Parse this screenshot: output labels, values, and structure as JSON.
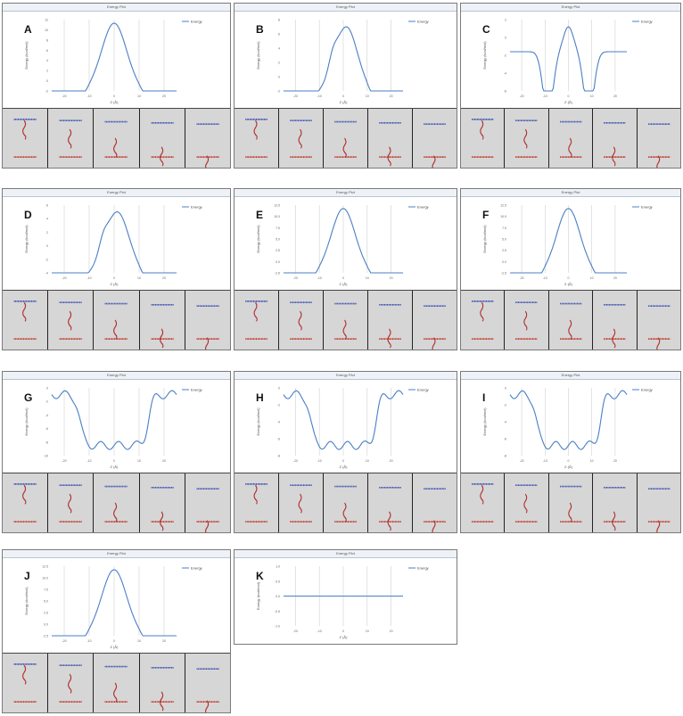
{
  "figure": {
    "panel_title": "Energy Plot",
    "legend_label": "Energy",
    "x_axis_label": "Z (Å)",
    "y_axis_label": "Energy (kcal/mol)",
    "panels": [
      {
        "letter": "A",
        "ticks_y": [
          "12",
          "10",
          "8",
          "6",
          "4",
          "2",
          "0",
          "-2"
        ],
        "ticks_x": [
          "-20",
          "-10",
          "0",
          "10",
          "20"
        ],
        "shape": "peak",
        "frames": 5
      },
      {
        "letter": "B",
        "ticks_y": [
          "8",
          "6",
          "4",
          "2",
          "0",
          "-2"
        ],
        "ticks_x": [
          "-20",
          "-10",
          "0",
          "10",
          "20"
        ],
        "shape": "peak_shoulder",
        "frames": 5
      },
      {
        "letter": "C",
        "ticks_y": [
          "2",
          "0",
          "-2",
          "-4",
          "-6"
        ],
        "ticks_x": [
          "-20",
          "-10",
          "0",
          "10",
          "20"
        ],
        "shape": "double_well",
        "frames": 5
      },
      {
        "letter": "D",
        "ticks_y": [
          "6",
          "4",
          "2",
          "0",
          "-2",
          "-4"
        ],
        "ticks_x": [
          "-20",
          "-10",
          "0",
          "10",
          "20"
        ],
        "shape": "peak_shoulder",
        "frames": 5
      },
      {
        "letter": "E",
        "ticks_y": [
          "12.5",
          "10.0",
          "7.5",
          "5.0",
          "2.5",
          "0.0",
          "-2.5"
        ],
        "ticks_x": [
          "-20",
          "-10",
          "0",
          "10",
          "20"
        ],
        "shape": "peak",
        "frames": 5
      },
      {
        "letter": "F",
        "ticks_y": [
          "12.5",
          "10.0",
          "7.5",
          "5.0",
          "2.5",
          "0.0",
          "-2.5"
        ],
        "ticks_x": [
          "-20",
          "-10",
          "0",
          "10",
          "20"
        ],
        "shape": "peak",
        "frames": 5
      },
      {
        "letter": "G",
        "ticks_y": [
          "0",
          "-2",
          "-4",
          "-6",
          "-8",
          "-10"
        ],
        "ticks_x": [
          "-20",
          "-10",
          "0",
          "10",
          "20"
        ],
        "shape": "trough",
        "frames": 5
      },
      {
        "letter": "H",
        "ticks_y": [
          "0",
          "-2",
          "-4",
          "-6",
          "-8"
        ],
        "ticks_x": [
          "-20",
          "-10",
          "0",
          "10",
          "20"
        ],
        "shape": "trough",
        "frames": 5
      },
      {
        "letter": "I",
        "ticks_y": [
          "0",
          "-2",
          "-4",
          "-6",
          "-8"
        ],
        "ticks_x": [
          "-20",
          "-10",
          "0",
          "10",
          "20"
        ],
        "shape": "trough",
        "frames": 5
      },
      {
        "letter": "J",
        "ticks_y": [
          "12.5",
          "10.0",
          "7.5",
          "5.0",
          "2.5",
          "0.0",
          "-2.5"
        ],
        "ticks_x": [
          "-20",
          "-10",
          "0",
          "10",
          "20"
        ],
        "shape": "peak",
        "frames": 5
      },
      {
        "letter": "K",
        "ticks_y": [
          "1.0",
          "0.5",
          "0.0",
          "-0.5",
          "-1.0"
        ],
        "ticks_x": [
          "-20",
          "-10",
          "0",
          "10",
          "20"
        ],
        "shape": "flat",
        "frames": 0
      }
    ]
  },
  "colors": {
    "curve": "#4a7fc4",
    "membrane_top": "#3a4fb0",
    "membrane_bottom": "#c0392b",
    "peptide": "#b03030",
    "grid": "#d0d0d0"
  }
}
